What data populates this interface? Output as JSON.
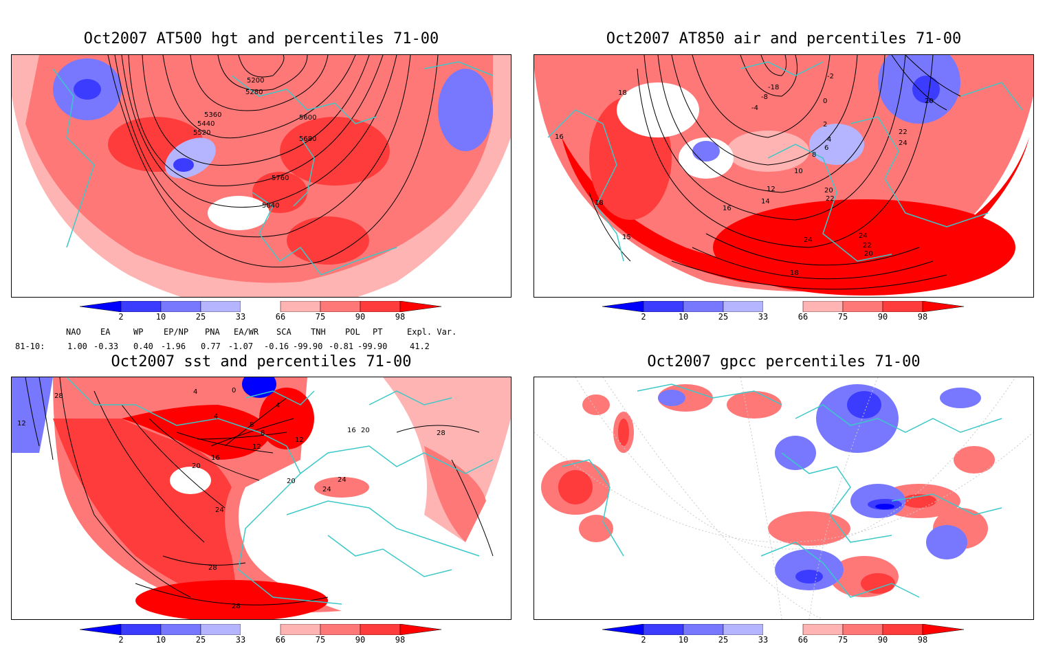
{
  "panels": [
    {
      "title": "Oct2007 AT500 hgt and percentiles 71-00",
      "contour_labels": [
        "5200",
        "5280",
        "5360",
        "5440",
        "5520",
        "5600",
        "5680",
        "5760",
        "5840"
      ]
    },
    {
      "title": "Oct2007 AT850 air and percentiles 71-00",
      "contour_labels": [
        "18",
        "16",
        "18",
        "15",
        "-2",
        "20",
        "22",
        "24",
        "-4",
        "-8",
        "-18",
        "0",
        "2",
        "4",
        "6",
        "8",
        "10",
        "12",
        "14",
        "16",
        "20",
        "22",
        "24",
        "22",
        "20",
        "18",
        "24"
      ]
    },
    {
      "title": "Oct2007 sst and percentiles 71-00",
      "contour_labels": [
        "28",
        "12",
        "4",
        "0",
        "4",
        "4",
        "8",
        "8",
        "12",
        "16",
        "20",
        "24",
        "28",
        "28",
        "20",
        "24",
        "24",
        "16",
        "20",
        "12",
        "28"
      ]
    },
    {
      "title": "Oct2007 gpcc percentiles 71-00",
      "contour_labels": []
    }
  ],
  "colorbar": {
    "labels": [
      "2",
      "10",
      "25",
      "33",
      "66",
      "75",
      "90",
      "98"
    ],
    "colors": {
      "p2": "#0000ff",
      "p10": "#3c3cff",
      "p25": "#7878ff",
      "p33": "#b4b4ff",
      "p66": "#ffb4b4",
      "p75": "#ff7878",
      "p90": "#ff3c3c",
      "p98": "#ff0000"
    }
  },
  "teleconnections": {
    "headers": [
      "NAO",
      "EA",
      "WP",
      "EP/NP",
      "PNA",
      "EA/WR",
      "SCA",
      "TNH",
      "POL",
      "PT",
      "Expl. Var."
    ],
    "row_label": "81-10:",
    "values": [
      "1.00",
      "-0.33",
      "0.40",
      "-1.96",
      "0.77",
      "-1.07",
      "-0.16",
      "-99.90",
      "-0.81",
      "-99.90",
      "41.2"
    ]
  },
  "map_colors": {
    "coast": "#3cc8c8",
    "contour": "#000000",
    "white": "#ffffff"
  }
}
